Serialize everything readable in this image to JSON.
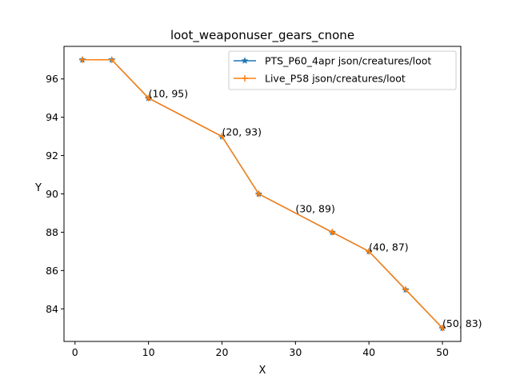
{
  "chart_data": {
    "type": "line",
    "title": "loot_weaponuser_gears_cnone",
    "xlabel": "X",
    "ylabel": "Y",
    "xlim": [
      -1.5,
      52.5
    ],
    "ylim": [
      82.3,
      97.7
    ],
    "xticks": [
      0,
      10,
      20,
      30,
      40,
      50
    ],
    "yticks": [
      84,
      86,
      88,
      90,
      92,
      94,
      96
    ],
    "grid": false,
    "legend_position": "upper right",
    "series": [
      {
        "name": "PTS_P60_4apr json/creatures/loot",
        "color": "#1f77b4",
        "marker": "star",
        "x": [
          1,
          5,
          10,
          20,
          25,
          35,
          40,
          45,
          50
        ],
        "y": [
          97,
          97,
          95,
          93,
          90,
          88,
          87,
          85,
          83
        ]
      },
      {
        "name": "Live_P58 json/creatures/loot",
        "color": "#ff7f0e",
        "marker": "plus",
        "x": [
          1,
          5,
          10,
          20,
          25,
          35,
          40,
          45,
          50
        ],
        "y": [
          97,
          97,
          95,
          93,
          90,
          88,
          87,
          85,
          83
        ]
      }
    ],
    "annotations": [
      {
        "text": "(10, 95)",
        "x": 10,
        "y": 95
      },
      {
        "text": "(20, 93)",
        "x": 20,
        "y": 93
      },
      {
        "text": "(30, 89)",
        "x": 30,
        "y": 89
      },
      {
        "text": "(40, 87)",
        "x": 40,
        "y": 87
      },
      {
        "text": "(50, 83)",
        "x": 50,
        "y": 83
      }
    ]
  }
}
